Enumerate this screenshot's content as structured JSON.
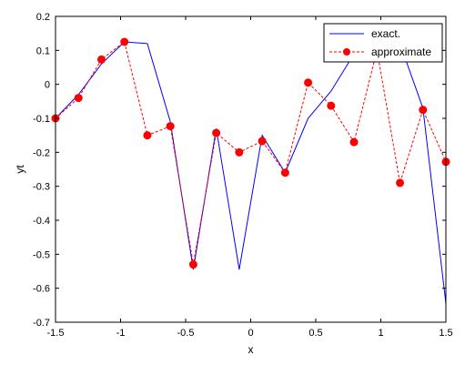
{
  "chart_data": {
    "type": "line",
    "title": "",
    "xlabel": "x",
    "ylabel": "yt",
    "xlim": [
      -1.5,
      1.5
    ],
    "ylim": [
      -0.7,
      0.2
    ],
    "x_ticks": [
      -1.5,
      -1,
      -0.5,
      0,
      0.5,
      1,
      1.5
    ],
    "x_tick_labels": [
      "-1.5",
      "-1",
      "-0.5",
      "0",
      "0.5",
      "1",
      "1.5"
    ],
    "y_ticks": [
      -0.7,
      -0.6,
      -0.5,
      -0.4,
      -0.3,
      -0.2,
      -0.1,
      0,
      0.1,
      0.2
    ],
    "y_tick_labels": [
      "-0.7",
      "-0.6",
      "-0.5",
      "-0.4",
      "-0.3",
      "-0.2",
      "-0.1",
      "0",
      "0.1",
      "0.2"
    ],
    "grid": false,
    "legend_position": "top-right",
    "series": [
      {
        "name": "exact.",
        "style": "solid",
        "color": "#0000ff",
        "x": [
          -1.5,
          -1.3235,
          -1.1471,
          -0.9706,
          -0.7941,
          -0.6176,
          -0.4412,
          -0.2647,
          -0.0882,
          0.0882,
          0.2647,
          0.4412,
          0.6176,
          0.7941,
          0.9706,
          1.1471,
          1.3235,
          1.5
        ],
        "values": [
          -0.1,
          -0.03,
          0.06,
          0.125,
          0.12,
          -0.11,
          -0.545,
          -0.13,
          -0.545,
          -0.15,
          -0.26,
          -0.1,
          -0.02,
          0.09,
          0.14,
          0.12,
          -0.07,
          -0.645
        ]
      },
      {
        "name": "approximate",
        "style": "dashed",
        "color": "#ff0000",
        "marker": "circle",
        "x": [
          -1.5,
          -1.3235,
          -1.1471,
          -0.9706,
          -0.7941,
          -0.6176,
          -0.4412,
          -0.2647,
          -0.0882,
          0.0882,
          0.2647,
          0.4412,
          0.6176,
          0.7941,
          0.9706,
          1.1471,
          1.3235,
          1.5
        ],
        "values": [
          -0.1,
          -0.04,
          0.073,
          0.125,
          -0.15,
          -0.123,
          -0.53,
          -0.143,
          -0.2,
          -0.167,
          -0.26,
          0.005,
          -0.063,
          -0.17,
          0.1,
          -0.29,
          -0.075,
          -0.228
        ]
      }
    ]
  }
}
